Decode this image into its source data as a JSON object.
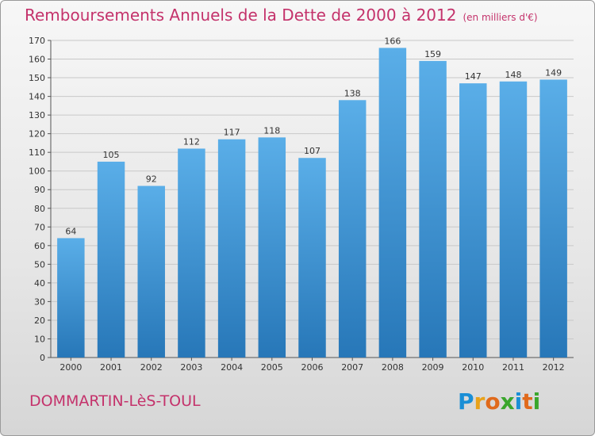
{
  "header": {
    "title": "Remboursements Annuels de la Dette de 2000 à 2012",
    "unit": "(en milliers d'€)"
  },
  "footer": {
    "location": "DOMMARTIN-LèS-TOUL",
    "brand_letters": [
      {
        "ch": "P",
        "color": "#1a8fd6"
      },
      {
        "ch": "r",
        "color": "#e8a21a"
      },
      {
        "ch": "o",
        "color": "#e06a1c"
      },
      {
        "ch": "x",
        "color": "#3aa62c"
      },
      {
        "ch": "i",
        "color": "#1a8fd6"
      },
      {
        "ch": "t",
        "color": "#e06a1c"
      },
      {
        "ch": "i",
        "color": "#3aa62c"
      }
    ]
  },
  "colors": {
    "bar_top": "#5aaee8",
    "bar_bottom": "#2777b8",
    "title": "#c4326b"
  },
  "chart_data": {
    "type": "bar",
    "title": "Remboursements Annuels de la Dette de 2000 à 2012",
    "xlabel": "",
    "ylabel": "",
    "categories": [
      "2000",
      "2001",
      "2002",
      "2003",
      "2004",
      "2005",
      "2006",
      "2007",
      "2008",
      "2009",
      "2010",
      "2011",
      "2012"
    ],
    "values": [
      64,
      105,
      92,
      112,
      117,
      118,
      107,
      138,
      166,
      159,
      147,
      148,
      149
    ],
    "ylim": [
      0,
      170
    ],
    "yticks": [
      0,
      10,
      20,
      30,
      40,
      50,
      60,
      70,
      80,
      90,
      100,
      110,
      120,
      130,
      140,
      150,
      160,
      170
    ],
    "grid": true
  }
}
